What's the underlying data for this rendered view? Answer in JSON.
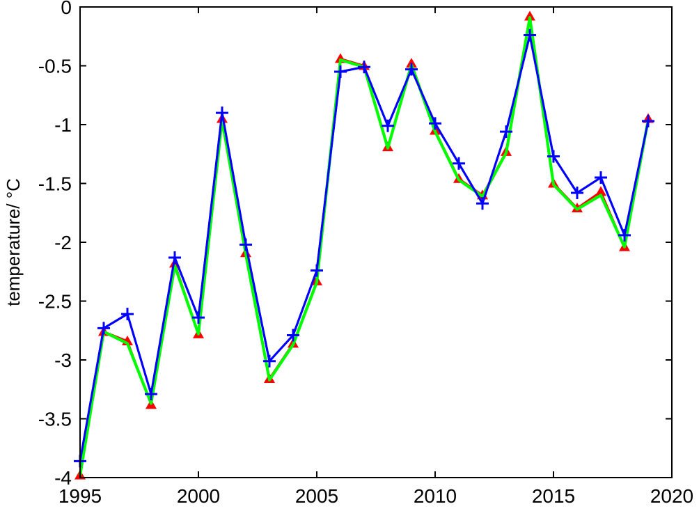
{
  "chart_data": {
    "type": "line",
    "title": "",
    "xlabel": "",
    "ylabel": "temperature/ °C",
    "xlim": [
      1995,
      2020
    ],
    "ylim": [
      -4,
      0
    ],
    "xticks": [
      1995,
      2000,
      2005,
      2010,
      2015,
      2020
    ],
    "xtick_labels": [
      "1995",
      "2000",
      "2005",
      "2010",
      "2015",
      "2020"
    ],
    "yticks": [
      0,
      -0.5,
      -1,
      -1.5,
      -2,
      -2.5,
      -3,
      -3.5,
      -4
    ],
    "ytick_labels": [
      "0",
      "-0.5",
      "-1",
      "-1.5",
      "-2",
      "-2.5",
      "-3",
      "-3.5",
      "-4"
    ],
    "grid": false,
    "x": [
      1995,
      1996,
      1997,
      1998,
      1999,
      2000,
      2001,
      2002,
      2003,
      2004,
      2005,
      2006,
      2007,
      2008,
      2009,
      2010,
      2011,
      2012,
      2013,
      2014,
      2015,
      2016,
      2017,
      2018,
      2019
    ],
    "series": [
      {
        "color": "#ff0000",
        "marker": "triangle",
        "values": [
          -3.98,
          -2.76,
          -2.84,
          -3.38,
          -2.18,
          -2.78,
          -0.95,
          -2.09,
          -3.16,
          -2.86,
          -2.33,
          -0.44,
          -0.5,
          -1.19,
          -0.48,
          -1.05,
          -1.46,
          -1.6,
          -1.23,
          -0.08,
          -1.5,
          -1.71,
          -1.57,
          -2.04,
          -0.95
        ]
      },
      {
        "color": "#00ff00",
        "marker": "none",
        "values": [
          -3.98,
          -2.76,
          -2.86,
          -3.37,
          -2.2,
          -2.78,
          -0.96,
          -2.1,
          -3.17,
          -2.87,
          -2.34,
          -0.45,
          -0.51,
          -1.2,
          -0.49,
          -1.06,
          -1.47,
          -1.61,
          -1.24,
          -0.09,
          -1.51,
          -1.72,
          -1.6,
          -2.04,
          -0.96
        ]
      },
      {
        "color": "#0000ff",
        "marker": "plus",
        "values": [
          -3.86,
          -2.73,
          -2.61,
          -3.29,
          -2.13,
          -2.64,
          -0.9,
          -2.02,
          -3.01,
          -2.79,
          -2.24,
          -0.55,
          -0.51,
          -1.01,
          -0.53,
          -0.99,
          -1.33,
          -1.67,
          -1.06,
          -0.24,
          -1.27,
          -1.58,
          -1.45,
          -1.94,
          -0.97
        ]
      }
    ]
  }
}
